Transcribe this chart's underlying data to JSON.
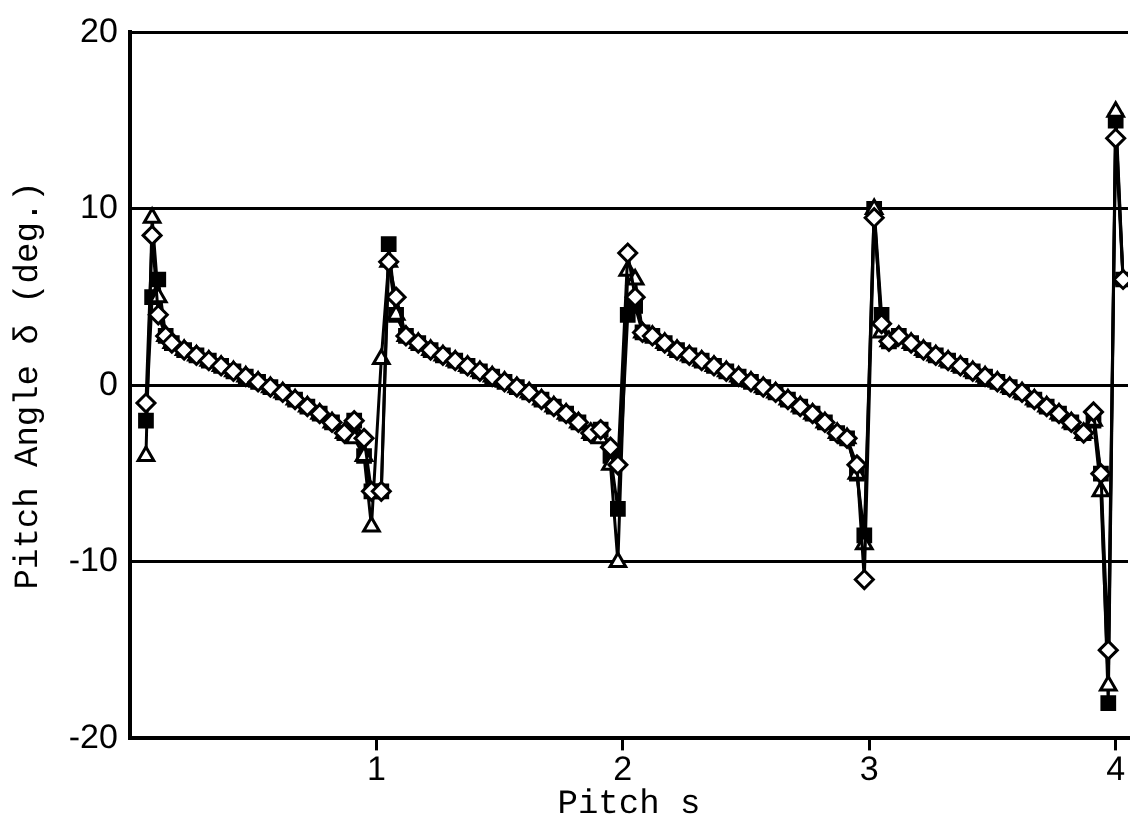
{
  "chart_data": {
    "type": "line",
    "xlabel": "Pitch s",
    "ylabel": "Pitch Angle δ (deg.)",
    "x": [
      0.065,
      0.09,
      0.115,
      0.145,
      0.17,
      0.22,
      0.27,
      0.32,
      0.37,
      0.42,
      0.47,
      0.52,
      0.57,
      0.62,
      0.67,
      0.72,
      0.77,
      0.82,
      0.87,
      0.91,
      0.95,
      0.98,
      1.02,
      1.05,
      1.08,
      1.12,
      1.17,
      1.22,
      1.27,
      1.32,
      1.37,
      1.42,
      1.47,
      1.52,
      1.57,
      1.62,
      1.67,
      1.72,
      1.77,
      1.82,
      1.87,
      1.91,
      1.95,
      1.98,
      2.02,
      2.05,
      2.08,
      2.12,
      2.17,
      2.22,
      2.27,
      2.32,
      2.37,
      2.42,
      2.47,
      2.52,
      2.57,
      2.62,
      2.67,
      2.72,
      2.77,
      2.82,
      2.87,
      2.91,
      2.95,
      2.98,
      3.02,
      3.05,
      3.08,
      3.12,
      3.17,
      3.22,
      3.27,
      3.32,
      3.37,
      3.42,
      3.47,
      3.52,
      3.57,
      3.62,
      3.67,
      3.72,
      3.77,
      3.82,
      3.87,
      3.91,
      3.94,
      3.97,
      4.0,
      4.03
    ],
    "series": [
      {
        "color": "#000000",
        "marker": "square",
        "values": [
          -2,
          5,
          6,
          2.8,
          2.4,
          2,
          1.7,
          1.4,
          1.1,
          0.8,
          0.5,
          0.2,
          -0.1,
          -0.4,
          -0.8,
          -1.2,
          -1.6,
          -2.1,
          -2.7,
          -2,
          -4,
          -6,
          -6,
          8,
          4,
          2.8,
          2.4,
          2,
          1.7,
          1.4,
          1.1,
          0.8,
          0.5,
          0.2,
          -0.1,
          -0.4,
          -0.8,
          -1.2,
          -1.6,
          -2.1,
          -2.7,
          -2.5,
          -4,
          -7,
          4,
          4.5,
          3,
          2.8,
          2.4,
          2,
          1.7,
          1.4,
          1.1,
          0.8,
          0.5,
          0.2,
          -0.1,
          -0.4,
          -0.8,
          -1.2,
          -1.6,
          -2.1,
          -2.7,
          -3,
          -5,
          -8.5,
          10,
          4,
          2.5,
          2.8,
          2.4,
          2,
          1.7,
          1.4,
          1.1,
          0.8,
          0.5,
          0.2,
          -0.1,
          -0.4,
          -0.8,
          -1.2,
          -1.6,
          -2.1,
          -2.7,
          -2,
          -5,
          -18,
          15,
          6
        ]
      },
      {
        "color": "#000000",
        "marker": "triangle",
        "values": [
          -4,
          9.5,
          5,
          2.8,
          2.4,
          2,
          1.7,
          1.4,
          1.1,
          0.8,
          0.5,
          0.2,
          -0.1,
          -0.4,
          -0.8,
          -1.2,
          -1.6,
          -2.1,
          -2.7,
          -3,
          -4,
          -8,
          1.5,
          7,
          4,
          2.8,
          2.4,
          2,
          1.7,
          1.4,
          1.1,
          0.8,
          0.5,
          0.2,
          -0.1,
          -0.4,
          -0.8,
          -1.2,
          -1.6,
          -2.1,
          -2.7,
          -3,
          -4.5,
          -10,
          6.5,
          6,
          3,
          2.8,
          2.4,
          2,
          1.7,
          1.4,
          1.1,
          0.8,
          0.5,
          0.2,
          -0.1,
          -0.4,
          -0.8,
          -1.2,
          -1.6,
          -2.1,
          -2.7,
          -3,
          -5,
          -9,
          10,
          3,
          2.5,
          2.8,
          2.4,
          2,
          1.7,
          1.4,
          1.1,
          0.8,
          0.5,
          0.2,
          -0.1,
          -0.4,
          -0.8,
          -1.2,
          -1.6,
          -2.1,
          -2.7,
          -2,
          -6,
          -17,
          15.5,
          6
        ]
      },
      {
        "color": "#000000",
        "marker": "diamond",
        "values": [
          -1,
          8.5,
          4,
          2.8,
          2.4,
          2,
          1.7,
          1.4,
          1.1,
          0.8,
          0.5,
          0.2,
          -0.1,
          -0.4,
          -0.8,
          -1.2,
          -1.6,
          -2.1,
          -2.7,
          -2,
          -3,
          -6,
          -6,
          7,
          5,
          2.8,
          2.4,
          2,
          1.7,
          1.4,
          1.1,
          0.8,
          0.5,
          0.2,
          -0.1,
          -0.4,
          -0.8,
          -1.2,
          -1.6,
          -2.1,
          -2.7,
          -2.5,
          -3.5,
          -4.5,
          7.5,
          5,
          3,
          2.8,
          2.4,
          2,
          1.7,
          1.4,
          1.1,
          0.8,
          0.5,
          0.2,
          -0.1,
          -0.4,
          -0.8,
          -1.2,
          -1.6,
          -2.1,
          -2.7,
          -3,
          -4.5,
          -11,
          9.5,
          3.5,
          2.5,
          2.8,
          2.4,
          2,
          1.7,
          1.4,
          1.1,
          0.8,
          0.5,
          0.2,
          -0.1,
          -0.4,
          -0.8,
          -1.2,
          -1.6,
          -2.1,
          -2.7,
          -1.5,
          -5,
          -15,
          14,
          6
        ]
      }
    ],
    "xlim": [
      0,
      4.05
    ],
    "xticks": [
      1,
      2,
      3,
      4
    ],
    "ylim": [
      -20,
      20
    ],
    "yticks": [
      -20,
      -10,
      0,
      10,
      20
    ],
    "grid": "y",
    "legend": false,
    "line_style": "solid"
  }
}
